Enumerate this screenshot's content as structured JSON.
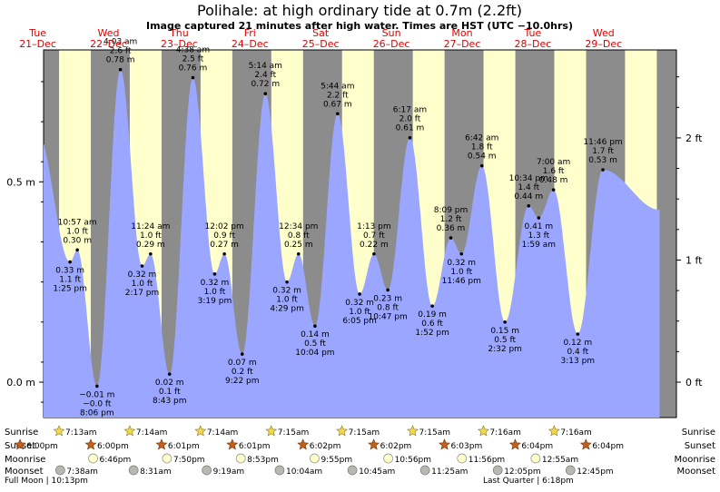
{
  "header": {
    "title": "Polihale: at high  ordinary tide at 0.7m (2.2ft)",
    "subtitle": "Image captured 21 minutes after high water. Times are HST (UTC −10.0hrs)"
  },
  "days": [
    {
      "name": "Tue",
      "date": "21–Dec"
    },
    {
      "name": "Wed",
      "date": "22–Dec"
    },
    {
      "name": "Thu",
      "date": "23–Dec"
    },
    {
      "name": "Fri",
      "date": "24–Dec"
    },
    {
      "name": "Sat",
      "date": "25–Dec"
    },
    {
      "name": "Sun",
      "date": "26–Dec"
    },
    {
      "name": "Mon",
      "date": "27–Dec"
    },
    {
      "name": "Tue",
      "date": "28–Dec"
    },
    {
      "name": "Wed",
      "date": "29–Dec"
    }
  ],
  "axis": {
    "left_ticks": [
      "0.0 m",
      "0.5 m"
    ],
    "right_ticks": [
      "0 ft",
      "1 ft",
      "2 ft"
    ]
  },
  "chart_data": {
    "type": "area",
    "title": "Polihale: at high  ordinary tide at 0.7m (2.2ft)",
    "ylabel": "",
    "xlabel": "",
    "ylim": [
      -0.09,
      0.81
    ],
    "x_unit": "hours from 00:00 Tue 21-Dec (HST)",
    "series": [
      {
        "values": [
          [
            10.95,
            0.3
          ],
          [
            13.42,
            0.33
          ],
          [
            20.1,
            -0.01
          ],
          [
            28.05,
            0.78
          ],
          [
            35.4,
            0.29
          ],
          [
            38.28,
            0.32
          ],
          [
            44.72,
            0.02
          ],
          [
            52.63,
            0.76
          ],
          [
            60.03,
            0.27
          ],
          [
            63.32,
            0.32
          ],
          [
            69.37,
            0.07
          ],
          [
            77.23,
            0.72
          ],
          [
            84.57,
            0.25
          ],
          [
            88.48,
            0.32
          ],
          [
            94.07,
            0.14
          ],
          [
            101.73,
            0.67
          ],
          [
            109.22,
            0.22
          ],
          [
            114.08,
            0.32
          ],
          [
            118.78,
            0.23
          ],
          [
            126.28,
            0.61
          ],
          [
            133.87,
            0.19
          ],
          [
            140.15,
            0.36
          ],
          [
            143.77,
            0.32
          ],
          [
            150.7,
            0.54
          ],
          [
            158.53,
            0.15
          ],
          [
            166.57,
            0.44
          ],
          [
            169.98,
            0.41
          ],
          [
            175.0,
            0.48
          ],
          [
            183.22,
            0.12
          ],
          [
            191.77,
            0.53
          ]
        ]
      }
    ],
    "annotations": [
      {
        "time": "1:25 pm",
        "ft": "1.1 ft",
        "m": "0.33 m"
      },
      {
        "time": "10:57 am",
        "ft": "1.0 ft",
        "m": "0.30 m"
      },
      {
        "time": "8:06 pm",
        "ft": "−0.0 ft",
        "m": "−0.01 m"
      },
      {
        "time": "4:03 am",
        "ft": "2.6 ft",
        "m": "0.78 m"
      },
      {
        "time": "2:17 pm",
        "ft": "1.0 ft",
        "m": "0.32 m"
      },
      {
        "time": "11:24 am",
        "ft": "1.0 ft",
        "m": "0.29 m"
      },
      {
        "time": "8:43 pm",
        "ft": "0.1 ft",
        "m": "0.02 m"
      },
      {
        "time": "4:38 am",
        "ft": "2.5 ft",
        "m": "0.76 m"
      },
      {
        "time": "3:19 pm",
        "ft": "1.0 ft",
        "m": "0.32 m"
      },
      {
        "time": "12:02 pm",
        "ft": "0.9 ft",
        "m": "0.27 m"
      },
      {
        "time": "9:22 pm",
        "ft": "0.2 ft",
        "m": "0.07 m"
      },
      {
        "time": "5:14 am",
        "ft": "2.4 ft",
        "m": "0.72 m"
      },
      {
        "time": "4:29 pm",
        "ft": "1.0 ft",
        "m": "0.32 m"
      },
      {
        "time": "12:34 pm",
        "ft": "0.8 ft",
        "m": "0.25 m"
      },
      {
        "time": "10:04 pm",
        "ft": "0.5 ft",
        "m": "0.14 m"
      },
      {
        "time": "5:44 am",
        "ft": "2.2 ft",
        "m": "0.67 m"
      },
      {
        "time": "6:05 pm",
        "ft": "1.0 ft",
        "m": "0.32 m"
      },
      {
        "time": "1:13 pm",
        "ft": "0.7 ft",
        "m": "0.22 m"
      },
      {
        "time": "10:47 pm",
        "ft": "0.8 ft",
        "m": "0.23 m"
      },
      {
        "time": "6:17 am",
        "ft": "2.0 ft",
        "m": "0.61 m"
      },
      {
        "time": "1:52 pm",
        "ft": "0.6 ft",
        "m": "0.19 m"
      },
      {
        "time": "8:09 pm",
        "ft": "1.2 ft",
        "m": "0.36 m"
      },
      {
        "time": "11:46 pm",
        "ft": "1.0 ft",
        "m": "0.32 m"
      },
      {
        "time": "6:42 am",
        "ft": "1.8 ft",
        "m": "0.54 m"
      },
      {
        "time": "2:32 pm",
        "ft": "0.5 ft",
        "m": "0.15 m"
      },
      {
        "time": "10:34 pm",
        "ft": "1.4 ft",
        "m": "0.44 m"
      },
      {
        "time": "1:59 am",
        "ft": "1.3 ft",
        "m": "0.41 m"
      },
      {
        "time": "7:00 am",
        "ft": "1.6 ft",
        "m": "0.48 m"
      },
      {
        "time": "3:13 pm",
        "ft": "0.4 ft",
        "m": "0.12 m"
      },
      {
        "time": "11:46 pm",
        "ft": "1.7 ft",
        "m": "0.53 m"
      }
    ],
    "grid": false,
    "legend": "none",
    "colors": {
      "tide": "#9aa6ff",
      "day": "#ffffcc",
      "night": "#8c8c8c",
      "daylabel": "#e00000"
    }
  },
  "rows": {
    "sunrise": {
      "label": "Sunrise",
      "times": [
        "7:13am",
        "7:14am",
        "7:14am",
        "7:15am",
        "7:15am",
        "7:15am",
        "7:16am",
        "7:16am"
      ]
    },
    "sunset": {
      "label": "Sunset",
      "times": [
        "6:00pm",
        "6:00pm",
        "6:01pm",
        "6:01pm",
        "6:02pm",
        "6:02pm",
        "6:03pm",
        "6:04pm",
        "6:04pm"
      ]
    },
    "moonrise": {
      "label": "Moonrise",
      "times": [
        "6:46pm",
        "7:50pm",
        "8:53pm",
        "9:55pm",
        "10:56pm",
        "11:56pm",
        "12:55am"
      ]
    },
    "moonset": {
      "label": "Moonset",
      "times": [
        "7:38am",
        "8:31am",
        "9:19am",
        "10:04am",
        "10:45am",
        "11:25am",
        "12:05pm",
        "12:45pm"
      ]
    }
  },
  "notes": {
    "full_moon": "Full Moon | 10:13pm",
    "last_quarter": "Last Quarter | 6:18pm"
  }
}
